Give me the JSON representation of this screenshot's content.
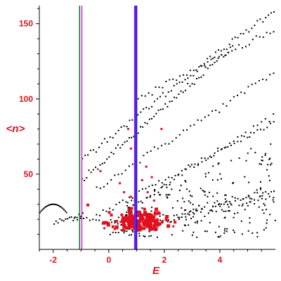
{
  "chart_data": {
    "type": "scatter",
    "title": "",
    "xlabel": "E",
    "ylabel": "<n>",
    "xlim": [
      -2.5,
      6.0
    ],
    "ylim": [
      0,
      162
    ],
    "xticks": [
      -2,
      0,
      2,
      4
    ],
    "yticks": [
      50,
      100,
      150
    ],
    "grid": false,
    "legend": "none",
    "colors": {
      "axis": "#000000",
      "text": "#e0101e",
      "black_series": "#000000",
      "red_series": "#e0101e",
      "line_green": "#007a1e",
      "line_magenta": "#d81ed8",
      "line_purple": "#7a1ee6",
      "line_blue": "#1e1ee6"
    },
    "vertical_lines": [
      {
        "x": -1.05,
        "color": "#007a1e",
        "width": 1.5
      },
      {
        "x": -0.97,
        "color": "#d81ed8",
        "width": 1.5
      },
      {
        "x": 0.95,
        "color": "#7a1ee6",
        "width": 3
      },
      {
        "x": 1.0,
        "color": "#1e1ee6",
        "width": 2
      }
    ],
    "series": [
      {
        "color": "#000000",
        "marker": "dot",
        "bands": [
          {
            "x0": -2.5,
            "x1": -1.5,
            "y0": 24,
            "y1": 30,
            "shape": "cap",
            "n": 22
          },
          {
            "x0": -2.0,
            "x1": -0.9,
            "y0": 17,
            "y1": 24,
            "n": 16
          },
          {
            "x0": -1.3,
            "x1": 0.5,
            "y0": 22,
            "y1": 15,
            "n": 16
          },
          {
            "x0": -1.0,
            "x1": 6.0,
            "y0": 60,
            "y1": 160,
            "n": 70
          },
          {
            "x0": 1.0,
            "x1": 6.0,
            "y0": 100,
            "y1": 146,
            "n": 40
          },
          {
            "x0": -1.0,
            "x1": 4.5,
            "y0": 45,
            "y1": 135,
            "n": 68
          },
          {
            "x0": -0.5,
            "x1": 6.0,
            "y0": 40,
            "y1": 118,
            "n": 50
          },
          {
            "x0": -0.5,
            "x1": 6.0,
            "y0": 22,
            "y1": 85,
            "n": 55
          },
          {
            "x0": 0.0,
            "x1": 6.0,
            "y0": 18,
            "y1": 90,
            "n": 42
          },
          {
            "x0": 0.0,
            "x1": 6.0,
            "y0": 10,
            "y1": 40,
            "n": 60
          },
          {
            "x0": 0.5,
            "x1": 6.0,
            "y0": 12,
            "y1": 35,
            "n": 40
          }
        ],
        "cloud": {
          "x0": 0.5,
          "x1": 6.0,
          "y0": 8,
          "y1": 75,
          "n": 230
        }
      },
      {
        "color": "#e0101e",
        "marker": "square",
        "cluster": {
          "cx": 1.05,
          "cy": 15,
          "sx": 0.55,
          "sy": 6,
          "n": 190
        },
        "outliers": [
          [
            0.7,
            80
          ],
          [
            0.8,
            67
          ],
          [
            1.35,
            55
          ],
          [
            1.55,
            48
          ],
          [
            0.4,
            44
          ],
          [
            1.2,
            46
          ],
          [
            -0.3,
            52
          ],
          [
            1.9,
            80
          ],
          [
            0.55,
            38
          ],
          [
            0.8,
            35
          ],
          [
            1.4,
            38
          ]
        ]
      }
    ]
  }
}
